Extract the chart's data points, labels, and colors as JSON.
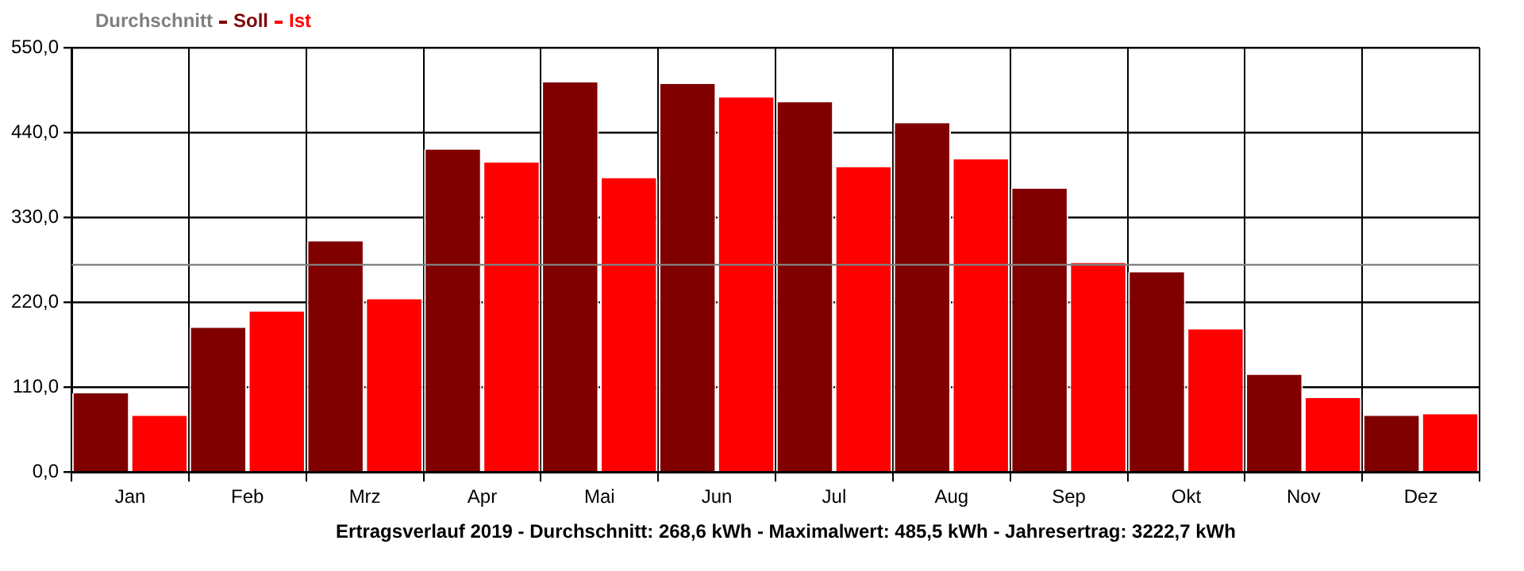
{
  "chart_data": {
    "type": "bar",
    "categories": [
      "Jan",
      "Feb",
      "Mrz",
      "Apr",
      "Mai",
      "Jun",
      "Jul",
      "Aug",
      "Sep",
      "Okt",
      "Nov",
      "Dez"
    ],
    "series": [
      {
        "name": "Soll",
        "color": "#800000",
        "values": [
          102,
          187,
          299,
          418,
          505,
          503,
          479,
          452,
          367,
          259,
          126,
          73
        ]
      },
      {
        "name": "Ist",
        "color": "#ff0000",
        "values": [
          73,
          208,
          224,
          401,
          381,
          485.5,
          395,
          405,
          271,
          185,
          96,
          75
        ]
      }
    ],
    "ylim": [
      0,
      550
    ],
    "yticks": [
      {
        "value": 0,
        "label": "0,0"
      },
      {
        "value": 110,
        "label": "110,0"
      },
      {
        "value": 220,
        "label": "220,0"
      },
      {
        "value": 330,
        "label": "330,0"
      },
      {
        "value": 440,
        "label": "440,0"
      },
      {
        "value": 550,
        "label": "550,0"
      }
    ],
    "ref_lines": [
      {
        "axis": "y",
        "value": 268.6,
        "label": "Durchschnitt",
        "color": "#808080"
      }
    ],
    "annotations": [
      "Ertragsverlauf 2019 - Durchschnitt: 268,6 kWh - Maximalwert: 485,5 kWh - Jahresertrag: 3222,7 kWh"
    ],
    "grid": true,
    "legend": "top left"
  }
}
